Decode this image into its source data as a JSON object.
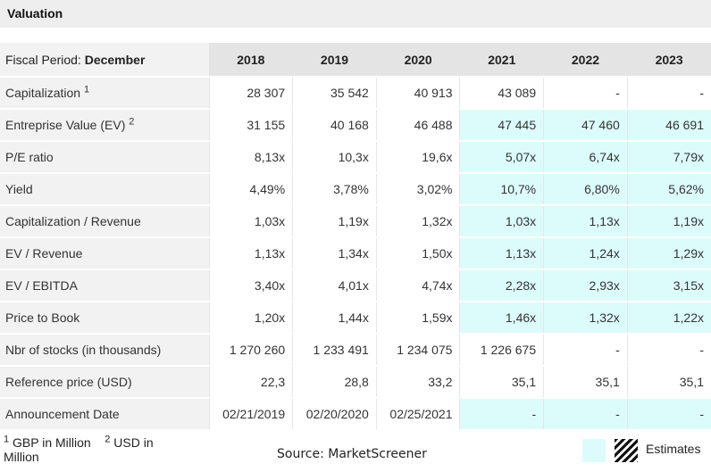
{
  "title": "Valuation",
  "header": {
    "fiscal_label": "Fiscal Period: ",
    "fiscal_value": "December",
    "years": [
      "2018",
      "2019",
      "2020",
      "2021",
      "2022",
      "2023"
    ]
  },
  "rows": [
    {
      "label": "Capitalization",
      "sup": "1",
      "values": [
        "28 307",
        "35 542",
        "40 913",
        "43 089",
        "-",
        "-"
      ],
      "estimate_from": 99
    },
    {
      "label": "Entreprise Value (EV)",
      "sup": "2",
      "values": [
        "31 155",
        "40 168",
        "46 488",
        "47 445",
        "47 460",
        "46 691"
      ],
      "estimate_from": 3
    },
    {
      "label": "P/E ratio",
      "sup": "",
      "values": [
        "8,13x",
        "10,3x",
        "19,6x",
        "5,07x",
        "6,74x",
        "7,79x"
      ],
      "estimate_from": 3
    },
    {
      "label": "Yield",
      "sup": "",
      "values": [
        "4,49%",
        "3,78%",
        "3,02%",
        "10,7%",
        "6,80%",
        "5,62%"
      ],
      "estimate_from": 3
    },
    {
      "label": "Capitalization / Revenue",
      "sup": "",
      "values": [
        "1,03x",
        "1,19x",
        "1,32x",
        "1,03x",
        "1,13x",
        "1,19x"
      ],
      "estimate_from": 3
    },
    {
      "label": "EV / Revenue",
      "sup": "",
      "values": [
        "1,13x",
        "1,34x",
        "1,50x",
        "1,13x",
        "1,24x",
        "1,29x"
      ],
      "estimate_from": 3
    },
    {
      "label": "EV / EBITDA",
      "sup": "",
      "values": [
        "3,40x",
        "4,01x",
        "4,74x",
        "2,28x",
        "2,93x",
        "3,15x"
      ],
      "estimate_from": 3
    },
    {
      "label": "Price to Book",
      "sup": "",
      "values": [
        "1,20x",
        "1,44x",
        "1,59x",
        "1,46x",
        "1,32x",
        "1,22x"
      ],
      "estimate_from": 3
    },
    {
      "label": "Nbr of stocks (in thousands)",
      "sup": "",
      "values": [
        "1 270 260",
        "1 233 491",
        "1 234 075",
        "1 226 675",
        "-",
        "-"
      ],
      "estimate_from": 99
    },
    {
      "label": "Reference price (USD)",
      "sup": "",
      "values": [
        "22,3",
        "28,8",
        "33,2",
        "35,1",
        "35,1",
        "35,1"
      ],
      "estimate_from": 99
    },
    {
      "label": "Announcement Date",
      "sup": "",
      "values": [
        "02/21/2019",
        "02/20/2020",
        "02/25/2021",
        "-",
        "-",
        "-"
      ],
      "estimate_from": 3
    }
  ],
  "footer": {
    "note1_sup": "1",
    "note1_text": " GBP in Million",
    "note2_sup": "2",
    "note2_text": " USD in Million",
    "source": "Source: MarketScreener",
    "legend_label": "Estimates"
  },
  "colors": {
    "estimate_bg": "#dcfcfc",
    "header_bg": "#e4e4e4",
    "label_bg": "#f2f2f2"
  }
}
